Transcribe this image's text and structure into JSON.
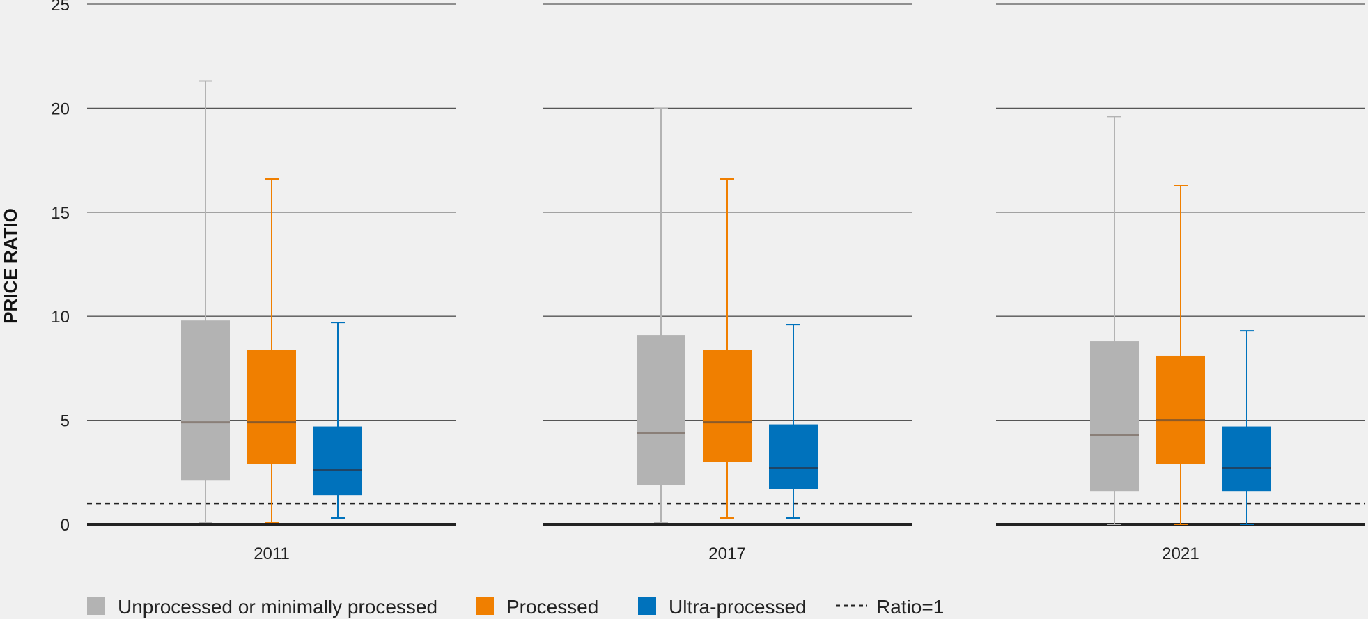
{
  "chart_data": {
    "type": "boxplot",
    "ylabel": "PRICE RATIO",
    "ylim": [
      0,
      25
    ],
    "yticks": [
      "0",
      "5",
      "10",
      "15",
      "20",
      "25"
    ],
    "grid": true,
    "legend_position": "bottom",
    "categories": [
      "2011",
      "2017",
      "2021"
    ],
    "reference_line": {
      "label": "Ratio=1",
      "value": 1,
      "style": "dashed",
      "color": "#222222"
    },
    "series": [
      {
        "name": "Unprocessed or minimally processed",
        "color": "#b3b3b3",
        "median_color": "#8a7f78",
        "boxes": [
          {
            "min": 0.1,
            "q1": 2.1,
            "median": 4.9,
            "q3": 9.8,
            "max": 21.3
          },
          {
            "min": 0.1,
            "q1": 1.9,
            "median": 4.4,
            "q3": 9.1,
            "max": 20.0
          },
          {
            "min": 0.0,
            "q1": 1.6,
            "median": 4.3,
            "q3": 8.8,
            "max": 19.6
          }
        ]
      },
      {
        "name": "Processed",
        "color": "#f07f00",
        "median_color": "#8a5a2a",
        "boxes": [
          {
            "min": 0.1,
            "q1": 2.9,
            "median": 4.9,
            "q3": 8.4,
            "max": 16.6
          },
          {
            "min": 0.3,
            "q1": 3.0,
            "median": 4.9,
            "q3": 8.4,
            "max": 16.6
          },
          {
            "min": 0.0,
            "q1": 2.9,
            "median": 5.0,
            "q3": 8.1,
            "max": 16.3
          }
        ]
      },
      {
        "name": "Ultra-processed",
        "color": "#0072bc",
        "median_color": "#1f4566",
        "boxes": [
          {
            "min": 0.3,
            "q1": 1.4,
            "median": 2.6,
            "q3": 4.7,
            "max": 9.7
          },
          {
            "min": 0.3,
            "q1": 1.7,
            "median": 2.7,
            "q3": 4.8,
            "max": 9.6
          },
          {
            "min": 0.0,
            "q1": 1.6,
            "median": 2.7,
            "q3": 4.7,
            "max": 9.3
          }
        ]
      }
    ]
  }
}
